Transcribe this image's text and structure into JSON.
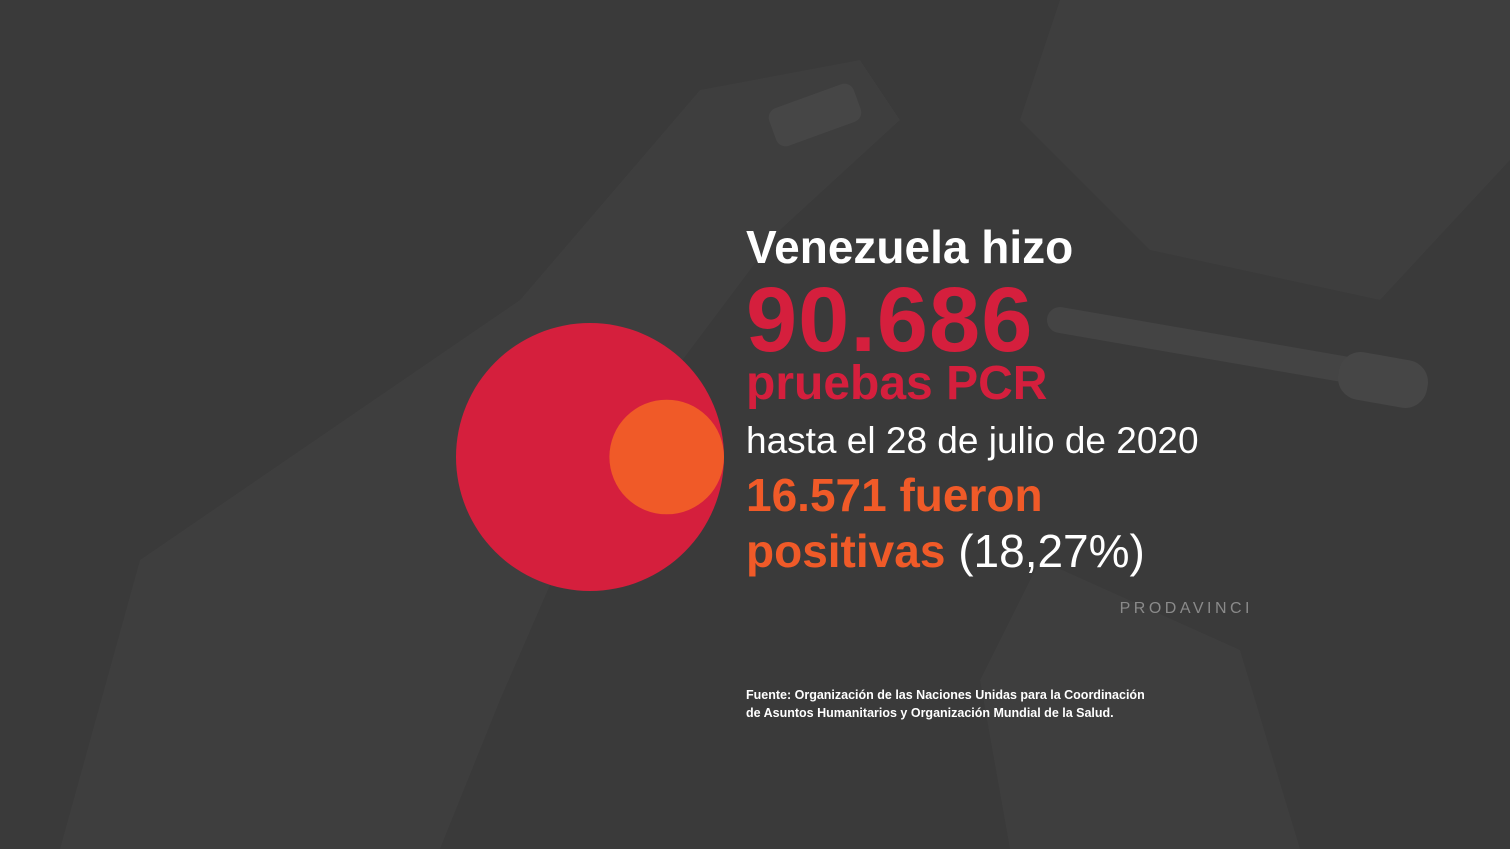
{
  "intro": "Venezuela hizo",
  "total_tests": "90.686",
  "unit": "pruebas PCR",
  "date_line": "hasta el 28 de julio de 2020",
  "positives_line1": "16.571 fueron",
  "positives_line2": "positivas",
  "percent": "(18,27%)",
  "brand": "PRODAVINCI",
  "source_line1": "Fuente: Organización de las Naciones Unidas para la Coordinación",
  "source_line2": "de Asuntos Humanitarios y Organización Mundial de la Salud.",
  "shares": {
    "positive_fraction": 0.1827
  },
  "colors": {
    "background": "#3a3a3a",
    "total": "#d51f3d",
    "positive": "#f05a28",
    "text": "#ffffff",
    "brand": "#8a8a8a"
  },
  "icons": [
    "test-tube-watermark-icon"
  ]
}
